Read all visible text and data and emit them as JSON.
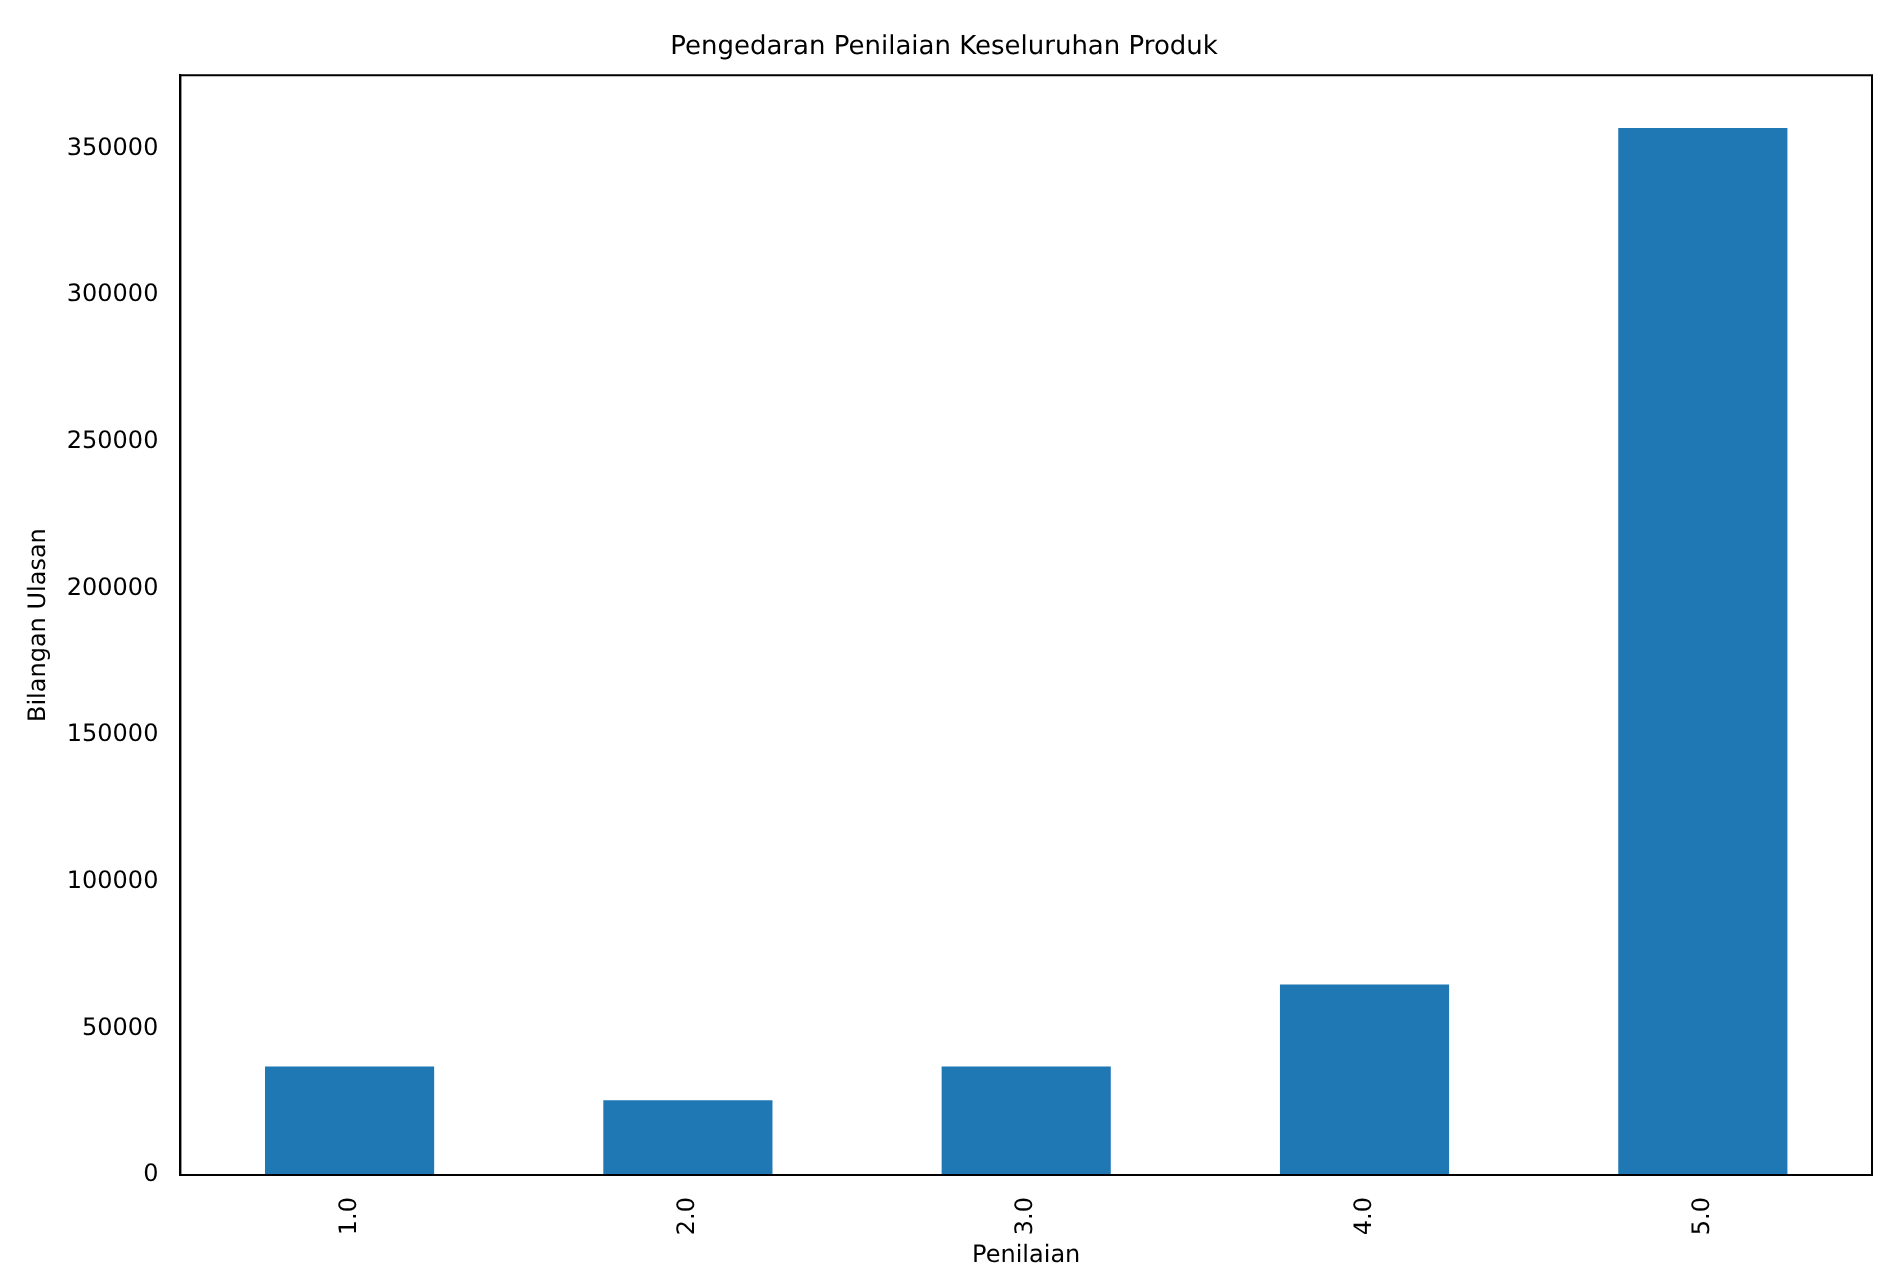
{
  "chart_data": {
    "type": "bar",
    "title": "Pengedaran Penilaian Keseluruhan Produk",
    "xlabel": "Penilaian",
    "ylabel": "Bilangan Ulasan",
    "categories": [
      "1.0",
      "2.0",
      "3.0",
      "4.0",
      "5.0"
    ],
    "values": [
      37000,
      25500,
      37000,
      65000,
      357000
    ],
    "color": "#1f77b4",
    "ylim": [
      0,
      375000
    ],
    "yticks": [
      0,
      50000,
      100000,
      150000,
      200000,
      250000,
      300000,
      350000
    ],
    "grid": false,
    "legend": false
  }
}
